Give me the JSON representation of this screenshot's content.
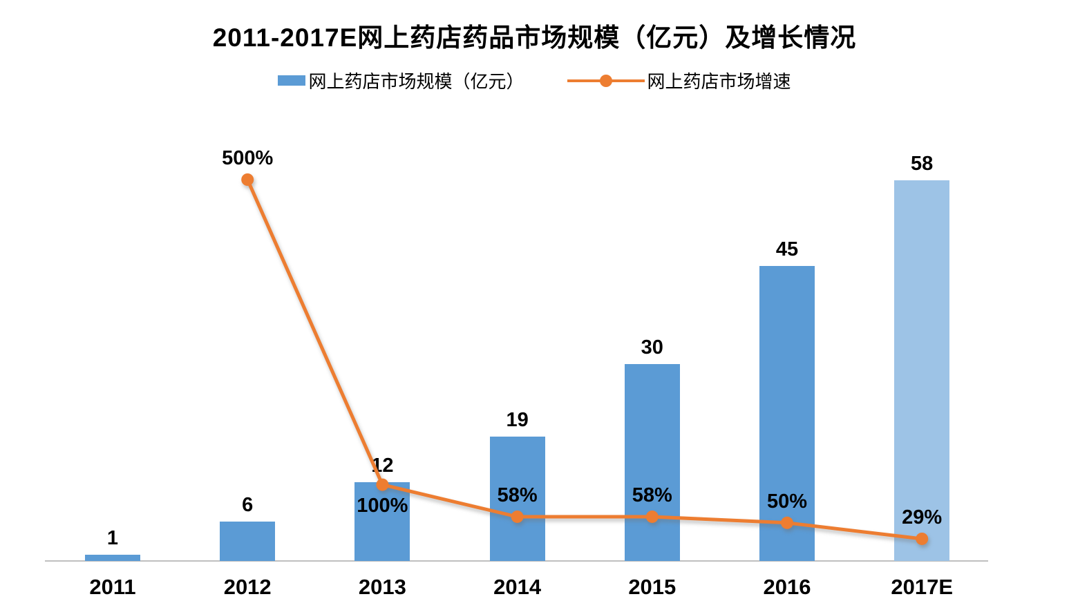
{
  "title": "2011-2017E网上药店药品市场规模（亿元）及增长情况",
  "legend": {
    "items": [
      {
        "label": "网上药店市场规模（亿元）",
        "marker": "bar-swatch",
        "color": "#5B9BD5"
      },
      {
        "label": "网上药店市场增速",
        "marker": "line-marker",
        "color": "#ED7D31"
      }
    ]
  },
  "chart_data": {
    "type": "combo-bar-line",
    "title": "2011-2017E网上药店药品市场规模（亿元）及增长情况",
    "categories": [
      "2011",
      "2012",
      "2013",
      "2014",
      "2015",
      "2016",
      "2017E"
    ],
    "series": [
      {
        "name": "网上药店市场规模（亿元）",
        "type": "bar",
        "axis": "left",
        "values": [
          1,
          6,
          12,
          19,
          30,
          45,
          58
        ],
        "data_labels": [
          "1",
          "6",
          "12",
          "19",
          "30",
          "45",
          "58"
        ],
        "bar_colors": [
          "#5B9BD5",
          "#5B9BD5",
          "#5B9BD5",
          "#5B9BD5",
          "#5B9BD5",
          "#5B9BD5",
          "#9DC3E6"
        ]
      },
      {
        "name": "网上药店市场增速",
        "type": "line",
        "axis": "right",
        "values_pct": [
          null,
          500,
          100,
          58,
          58,
          50,
          29
        ],
        "data_labels": [
          "",
          "500%",
          "100%",
          "58%",
          "58%",
          "50%",
          "29%"
        ],
        "label_positions": [
          "",
          "above",
          "below",
          "above",
          "above",
          "above",
          "above"
        ],
        "color": "#ED7D31"
      }
    ],
    "left_axis": {
      "min": 0,
      "max": 60,
      "visible": false
    },
    "right_axis": {
      "min": 0,
      "max": 500,
      "unit": "%",
      "visible": false
    },
    "grid": false,
    "legend_position": "top",
    "axis_line_color": "#BFBFBF"
  }
}
